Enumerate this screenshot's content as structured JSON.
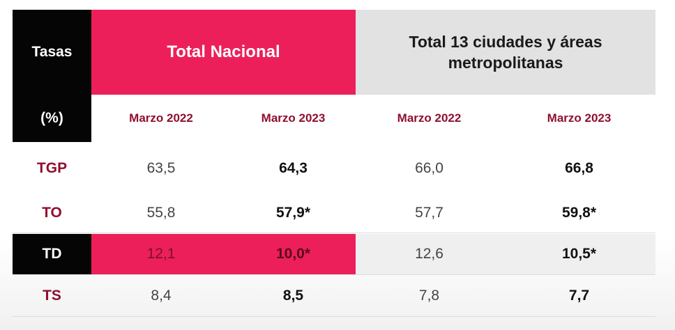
{
  "header": {
    "tasas_label": "Tasas",
    "percent_label": "(%)",
    "group_national": "Total Nacional",
    "group_cities": "Total 13 ciudades y áreas metropolitanas",
    "periods": [
      "Marzo 2022",
      "Marzo 2023",
      "Marzo 2022",
      "Marzo 2023"
    ]
  },
  "rows": [
    {
      "label": "TGP",
      "values": [
        "63,5",
        "64,3",
        "66,0",
        "66,8"
      ]
    },
    {
      "label": "TO",
      "values": [
        "55,8",
        "57,9*",
        "57,7",
        "59,8*"
      ]
    },
    {
      "label": "TD",
      "values": [
        "12,1",
        "10,0*",
        "12,6",
        "10,5*"
      ]
    },
    {
      "label": "TS",
      "values": [
        "8,4",
        "8,5",
        "7,8",
        "7,7"
      ]
    }
  ],
  "colors": {
    "accent_pink": "#ec1f5a",
    "label_maroon": "#8f0f2f",
    "header_black": "#050505",
    "header_gray": "#e2e2e2"
  }
}
